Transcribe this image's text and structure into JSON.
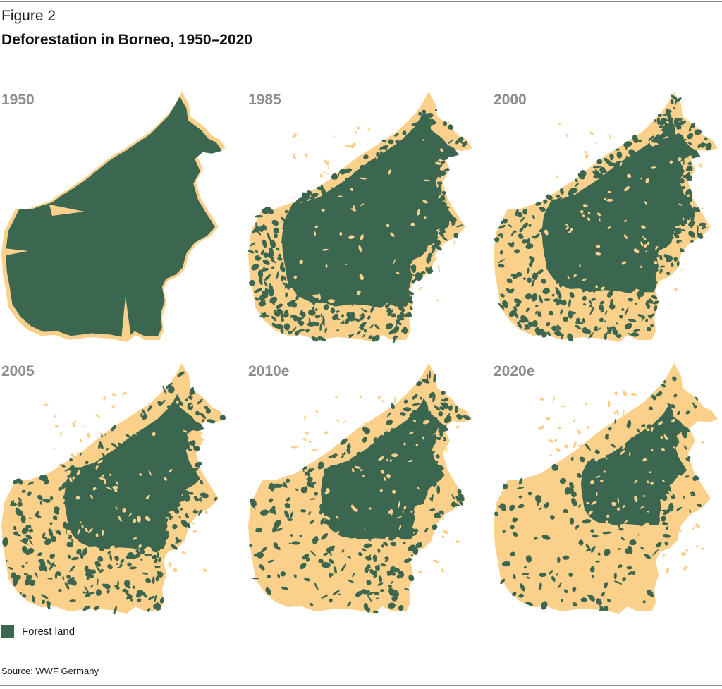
{
  "figure_label": "Figure 2",
  "title": "Deforestation in Borneo, 1950–2020",
  "colors": {
    "forest": "#3b6650",
    "cleared": "#fbd08a",
    "year_label": "#8c8c8c"
  },
  "panels": [
    {
      "year": "1950",
      "forest_level": 1.0
    },
    {
      "year": "1985",
      "forest_level": 0.8
    },
    {
      "year": "2000",
      "forest_level": 0.65
    },
    {
      "year": "2005",
      "forest_level": 0.5
    },
    {
      "year": "2010e",
      "forest_level": 0.4
    },
    {
      "year": "2020e",
      "forest_level": 0.25
    }
  ],
  "legend": {
    "label": "Forest land"
  },
  "source": "Source: WWF Germany"
}
